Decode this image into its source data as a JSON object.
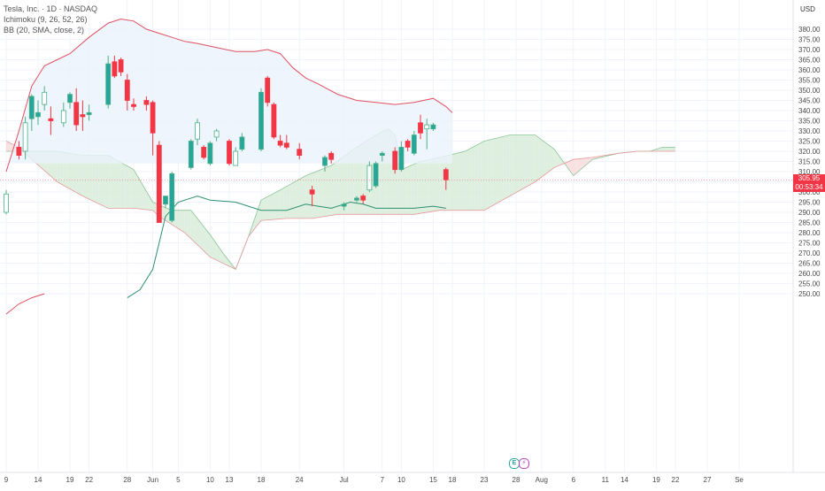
{
  "chart_data": {
    "type": "candlestick",
    "title": "Tesla, Inc. · 1D · NASDAQ",
    "currency": "USD",
    "indicators": [
      "Ichimoku (9, 26, 52, 26)",
      "BB (20, SMA, close, 2)"
    ],
    "y_ticks": [
      250,
      255,
      260,
      265,
      270,
      275,
      280,
      285,
      290,
      295,
      300,
      305,
      310,
      315,
      320,
      325,
      330,
      335,
      340,
      345,
      350,
      355,
      360,
      365,
      370,
      375,
      380
    ],
    "ylim": [
      250,
      387
    ],
    "x_ticks": [
      {
        "label": "9",
        "day": 0
      },
      {
        "label": "14",
        "day": 5
      },
      {
        "label": "19",
        "day": 10
      },
      {
        "label": "22",
        "day": 13
      },
      {
        "label": "28",
        "day": 19
      },
      {
        "label": "Jun",
        "day": 23
      },
      {
        "label": "5",
        "day": 27
      },
      {
        "label": "10",
        "day": 32
      },
      {
        "label": "13",
        "day": 35
      },
      {
        "label": "18",
        "day": 40
      },
      {
        "label": "24",
        "day": 46
      },
      {
        "label": "Jul",
        "day": 53
      },
      {
        "label": "7",
        "day": 59
      },
      {
        "label": "10",
        "day": 62
      },
      {
        "label": "15",
        "day": 67
      },
      {
        "label": "18",
        "day": 70
      },
      {
        "label": "23",
        "day": 75
      },
      {
        "label": "28",
        "day": 80
      },
      {
        "label": "Aug",
        "day": 84
      },
      {
        "label": "6",
        "day": 89
      },
      {
        "label": "11",
        "day": 94
      },
      {
        "label": "14",
        "day": 97
      },
      {
        "label": "19",
        "day": 102
      },
      {
        "label": "22",
        "day": 105
      },
      {
        "label": "27",
        "day": 110
      },
      {
        "label": "Se",
        "day": 115
      }
    ],
    "candles": [
      {
        "d": 0,
        "o": 290,
        "h": 301,
        "l": 289,
        "c": 299
      },
      {
        "d": 2,
        "o": 322,
        "h": 325,
        "l": 316,
        "c": 318
      },
      {
        "d": 3,
        "o": 320,
        "h": 337,
        "l": 316,
        "c": 334
      },
      {
        "d": 4,
        "o": 336,
        "h": 348,
        "l": 330,
        "c": 347
      },
      {
        "d": 5,
        "o": 337,
        "h": 345,
        "l": 333,
        "c": 339
      },
      {
        "d": 6,
        "o": 343,
        "h": 352,
        "l": 340,
        "c": 349
      },
      {
        "d": 7,
        "o": 336,
        "h": 342,
        "l": 328,
        "c": 335
      },
      {
        "d": 9,
        "o": 334,
        "h": 344,
        "l": 332,
        "c": 340
      },
      {
        "d": 10,
        "o": 344,
        "h": 349,
        "l": 341,
        "c": 348
      },
      {
        "d": 11,
        "o": 344,
        "h": 351,
        "l": 330,
        "c": 333
      },
      {
        "d": 12,
        "o": 338,
        "h": 345,
        "l": 330,
        "c": 337
      },
      {
        "d": 13,
        "o": 338,
        "h": 343,
        "l": 335,
        "c": 339
      },
      {
        "d": 16,
        "o": 343,
        "h": 367,
        "l": 341,
        "c": 363
      },
      {
        "d": 17,
        "o": 364,
        "h": 367,
        "l": 356,
        "c": 357
      },
      {
        "d": 18,
        "o": 365,
        "h": 366,
        "l": 357,
        "c": 359
      },
      {
        "d": 19,
        "o": 355,
        "h": 358,
        "l": 340,
        "c": 345
      },
      {
        "d": 20,
        "o": 343,
        "h": 346,
        "l": 340,
        "c": 342
      },
      {
        "d": 22,
        "o": 345,
        "h": 347,
        "l": 340,
        "c": 343
      },
      {
        "d": 23,
        "o": 344,
        "h": 345,
        "l": 318,
        "c": 329
      },
      {
        "d": 24,
        "o": 323,
        "h": 325,
        "l": 285,
        "c": 285
      },
      {
        "d": 25,
        "o": 294,
        "h": 298,
        "l": 292,
        "c": 298
      },
      {
        "d": 26,
        "o": 286,
        "h": 310,
        "l": 285,
        "c": 309
      },
      {
        "d": 29,
        "o": 312,
        "h": 326,
        "l": 311,
        "c": 325
      },
      {
        "d": 30,
        "o": 326,
        "h": 336,
        "l": 323,
        "c": 334
      },
      {
        "d": 31,
        "o": 322,
        "h": 323,
        "l": 316,
        "c": 317
      },
      {
        "d": 32,
        "o": 314,
        "h": 325,
        "l": 313,
        "c": 324
      },
      {
        "d": 33,
        "o": 327,
        "h": 331,
        "l": 325,
        "c": 330
      },
      {
        "d": 35,
        "o": 325,
        "h": 326,
        "l": 313,
        "c": 314
      },
      {
        "d": 36,
        "o": 313,
        "h": 322,
        "l": 313,
        "c": 320
      },
      {
        "d": 37,
        "o": 321,
        "h": 329,
        "l": 320,
        "c": 327
      },
      {
        "d": 40,
        "o": 321,
        "h": 351,
        "l": 320,
        "c": 349
      },
      {
        "d": 41,
        "o": 356,
        "h": 357,
        "l": 342,
        "c": 344
      },
      {
        "d": 42,
        "o": 343,
        "h": 344,
        "l": 326,
        "c": 327
      },
      {
        "d": 43,
        "o": 325,
        "h": 328,
        "l": 322,
        "c": 323
      },
      {
        "d": 44,
        "o": 324,
        "h": 328,
        "l": 321,
        "c": 322
      },
      {
        "d": 46,
        "o": 321,
        "h": 324,
        "l": 316,
        "c": 318
      },
      {
        "d": 48,
        "o": 301,
        "h": 303,
        "l": 293,
        "c": 299
      },
      {
        "d": 50,
        "o": 313,
        "h": 318,
        "l": 310,
        "c": 317
      },
      {
        "d": 51,
        "o": 319,
        "h": 320,
        "l": 314,
        "c": 316
      },
      {
        "d": 53,
        "o": 293,
        "h": 295,
        "l": 291,
        "c": 294
      },
      {
        "d": 55,
        "o": 296,
        "h": 298,
        "l": 295,
        "c": 297
      },
      {
        "d": 56,
        "o": 298,
        "h": 299,
        "l": 294,
        "c": 296
      },
      {
        "d": 57,
        "o": 301,
        "h": 315,
        "l": 300,
        "c": 313
      },
      {
        "d": 58,
        "o": 303,
        "h": 315,
        "l": 302,
        "c": 314
      },
      {
        "d": 59,
        "o": 318,
        "h": 320,
        "l": 315,
        "c": 319
      },
      {
        "d": 61,
        "o": 320,
        "h": 322,
        "l": 309,
        "c": 311
      },
      {
        "d": 62,
        "o": 311,
        "h": 325,
        "l": 310,
        "c": 322
      },
      {
        "d": 63,
        "o": 325,
        "h": 326,
        "l": 320,
        "c": 322
      },
      {
        "d": 64,
        "o": 319,
        "h": 330,
        "l": 318,
        "c": 328
      },
      {
        "d": 65,
        "o": 334,
        "h": 338,
        "l": 326,
        "c": 329
      },
      {
        "d": 66,
        "o": 331,
        "h": 336,
        "l": 321,
        "c": 333
      },
      {
        "d": 67,
        "o": 331,
        "h": 334,
        "l": 330,
        "c": 333
      },
      {
        "d": 69,
        "o": 311,
        "h": 312,
        "l": 301,
        "c": 306
      }
    ],
    "current_price": {
      "value": "305.95",
      "countdown": "00:53:34"
    },
    "bb_upper": [
      [
        0,
        310
      ],
      [
        2,
        330
      ],
      [
        4,
        352
      ],
      [
        6,
        362
      ],
      [
        8,
        365
      ],
      [
        10,
        368
      ],
      [
        13,
        376
      ],
      [
        16,
        383
      ],
      [
        18,
        385
      ],
      [
        20,
        384
      ],
      [
        22,
        380
      ],
      [
        24,
        378
      ],
      [
        26,
        376
      ],
      [
        28,
        374
      ],
      [
        30,
        373
      ],
      [
        33,
        371
      ],
      [
        36,
        369
      ],
      [
        39,
        369
      ],
      [
        41,
        370
      ],
      [
        43,
        368
      ],
      [
        45,
        361
      ],
      [
        47,
        356
      ],
      [
        49,
        353
      ],
      [
        52,
        348
      ],
      [
        55,
        345
      ],
      [
        58,
        344
      ],
      [
        61,
        343
      ],
      [
        64,
        344
      ],
      [
        67,
        346
      ],
      [
        69,
        342
      ],
      [
        70,
        339
      ]
    ],
    "bb_lower": [
      [
        0,
        240
      ],
      [
        2,
        245
      ],
      [
        4,
        248
      ],
      [
        6,
        250
      ]
    ],
    "bb_band_bottom_y": 314,
    "cloud_a": [
      [
        0,
        320
      ],
      [
        4,
        320
      ],
      [
        8,
        320
      ],
      [
        12,
        318
      ],
      [
        16,
        318
      ],
      [
        20,
        311
      ],
      [
        23,
        295
      ],
      [
        26,
        291
      ],
      [
        29,
        291
      ],
      [
        32,
        279
      ],
      [
        34,
        270
      ],
      [
        36,
        262
      ],
      [
        38,
        278
      ],
      [
        40,
        296
      ],
      [
        43,
        301
      ],
      [
        47,
        308
      ],
      [
        51,
        313
      ],
      [
        55,
        322
      ],
      [
        58,
        328
      ],
      [
        60,
        331
      ],
      [
        61,
        328
      ],
      [
        62,
        311
      ],
      [
        65,
        315
      ],
      [
        68,
        317
      ],
      [
        72,
        320
      ],
      [
        75,
        325
      ],
      [
        79,
        328
      ],
      [
        83,
        328
      ],
      [
        86,
        321
      ],
      [
        89,
        308
      ],
      [
        92,
        316
      ],
      [
        96,
        319
      ],
      [
        99,
        320
      ],
      [
        101,
        320
      ],
      [
        103,
        322
      ],
      [
        105,
        322
      ]
    ],
    "cloud_b": [
      [
        0,
        325
      ],
      [
        2,
        322
      ],
      [
        4,
        316
      ],
      [
        8,
        305
      ],
      [
        12,
        298
      ],
      [
        16,
        292
      ],
      [
        20,
        292
      ],
      [
        23,
        291
      ],
      [
        24,
        288
      ],
      [
        28,
        280
      ],
      [
        32,
        268
      ],
      [
        36,
        262
      ],
      [
        38,
        278
      ],
      [
        40,
        286
      ],
      [
        44,
        287
      ],
      [
        48,
        287
      ],
      [
        52,
        289
      ],
      [
        56,
        289
      ],
      [
        60,
        289
      ],
      [
        64,
        289
      ],
      [
        68,
        291
      ],
      [
        70,
        291
      ],
      [
        72,
        291
      ],
      [
        75,
        291
      ],
      [
        79,
        298
      ],
      [
        83,
        305
      ],
      [
        86,
        312
      ],
      [
        89,
        316
      ],
      [
        92,
        317
      ],
      [
        96,
        319
      ],
      [
        99,
        320
      ],
      [
        103,
        320
      ],
      [
        105,
        320
      ]
    ],
    "kijun": [
      [
        19,
        248
      ],
      [
        21,
        252
      ],
      [
        23,
        262
      ],
      [
        25,
        288
      ],
      [
        27,
        295
      ],
      [
        30,
        298
      ],
      [
        32,
        296
      ],
      [
        36,
        295
      ],
      [
        40,
        291
      ],
      [
        44,
        291
      ],
      [
        47,
        294
      ],
      [
        49,
        293
      ],
      [
        51,
        292
      ],
      [
        54,
        295
      ],
      [
        56,
        294
      ],
      [
        58,
        292
      ],
      [
        61,
        292
      ],
      [
        64,
        292
      ],
      [
        67,
        293
      ],
      [
        69,
        292
      ]
    ],
    "colors": {
      "up_fill": "#26a69a",
      "up_outline": "#4caf87",
      "down": "#f23645",
      "bb_line": "#e05060",
      "bb_fill": "#eaf3fb",
      "cloud_green": "#d8ecd9",
      "cloud_red": "#f8dcdc",
      "kijun": "#2f8f70",
      "grid": "#f0f3fa",
      "axis_text": "#4a4a4a"
    }
  },
  "axis": {
    "unit_label": "USD"
  },
  "events": {
    "earnings_label": "E",
    "split_label": "⚡"
  }
}
